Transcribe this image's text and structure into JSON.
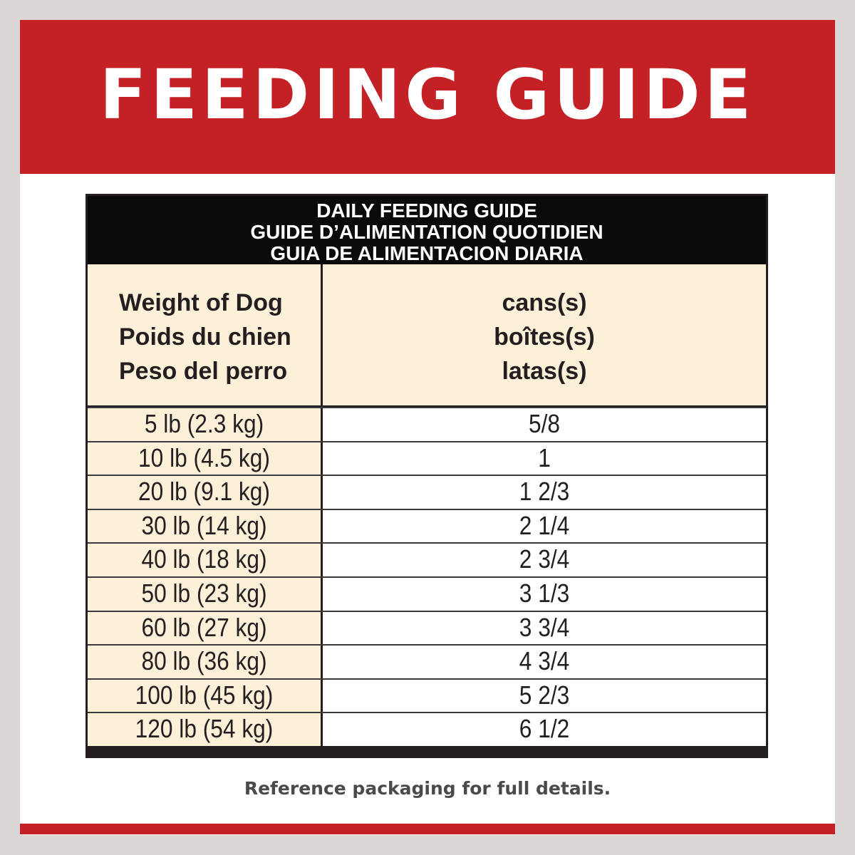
{
  "banner": {
    "title": "FEEDING GUIDE"
  },
  "table": {
    "title_lines": [
      "DAILY FEEDING GUIDE",
      "GUIDE D’ALIMENTATION QUOTIDIEN",
      "GUIA DE ALIMENTACION DIARIA"
    ],
    "col_weight_lines": [
      "Weight of Dog",
      "Poids du chien",
      "Peso del perro"
    ],
    "col_cans_lines": [
      "cans(s)",
      "boîtes(s)",
      "latas(s)"
    ],
    "rows": [
      {
        "weight": "5 lb (2.3 kg)",
        "cans": "5/8"
      },
      {
        "weight": "10 lb (4.5 kg)",
        "cans": "1"
      },
      {
        "weight": "20 lb (9.1 kg)",
        "cans": "1 2/3"
      },
      {
        "weight": "30 lb (14 kg)",
        "cans": "2 1/4"
      },
      {
        "weight": "40 lb (18 kg)",
        "cans": "2 3/4"
      },
      {
        "weight": "50 lb (23 kg)",
        "cans": "3 1/3"
      },
      {
        "weight": "60 lb (27 kg)",
        "cans": "3 3/4"
      },
      {
        "weight": "80 lb (36 kg)",
        "cans": "4 3/4"
      },
      {
        "weight": "100 lb (45 kg)",
        "cans": "5 2/3"
      },
      {
        "weight": "120 lb (54 kg)",
        "cans": "6 1/2"
      }
    ]
  },
  "footnote": "Reference packaging for full details.",
  "colors": {
    "brand_red": "#c42127",
    "cream": "#fdf0d8",
    "header_black": "#0a0a0a",
    "page_gray": "#dcd6d6"
  }
}
